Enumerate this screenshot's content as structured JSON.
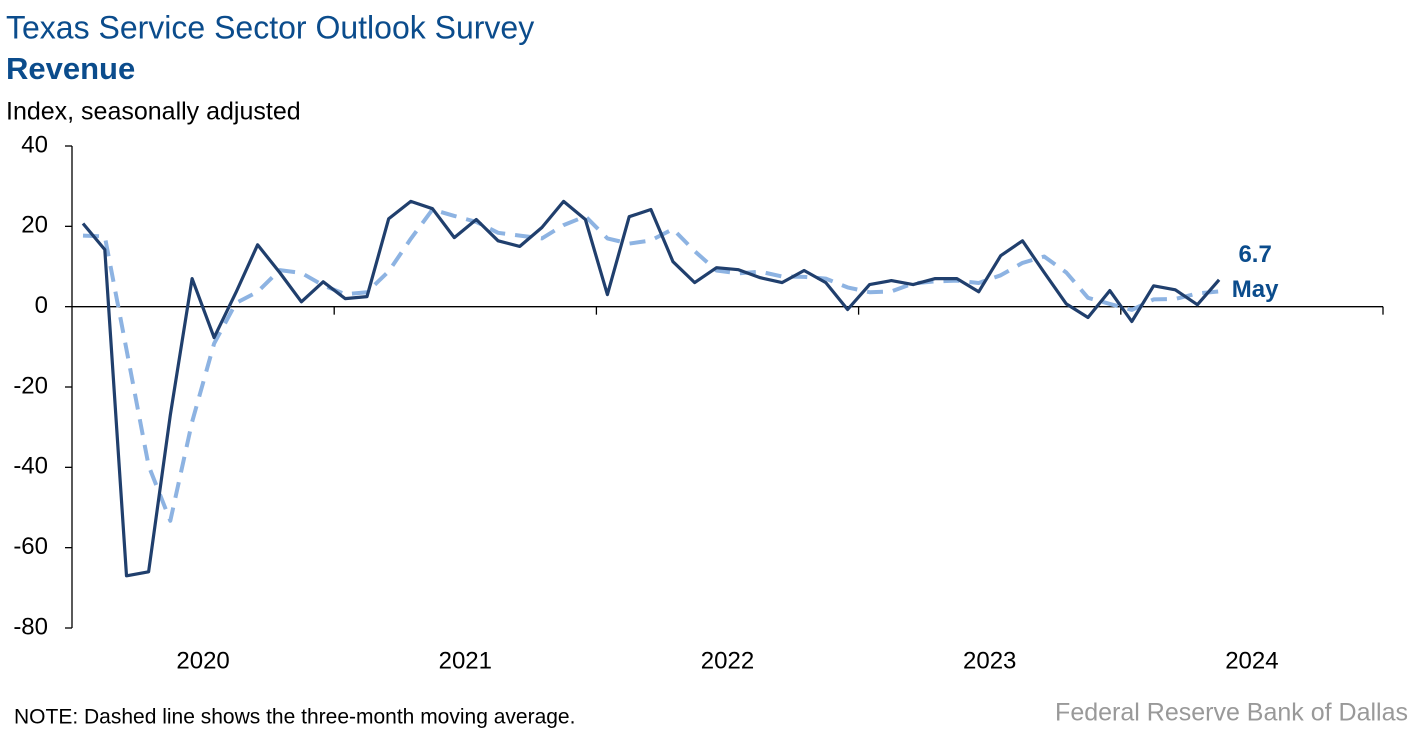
{
  "chart_data": {
    "type": "line",
    "title": "Texas Service Sector Outlook Survey",
    "subtitle": "Revenue",
    "y_axis_label": "Index, seasonally adjusted",
    "note": "NOTE: Dashed line shows the three-month moving average.",
    "source": "Federal Reserve Bank of Dallas",
    "annotations": [
      "6.7",
      "May"
    ],
    "x": [
      2020.042,
      2020.125,
      2020.208,
      2020.292,
      2020.375,
      2020.458,
      2020.542,
      2020.625,
      2020.708,
      2020.792,
      2020.875,
      2020.958,
      2021.042,
      2021.125,
      2021.208,
      2021.292,
      2021.375,
      2021.458,
      2021.542,
      2021.625,
      2021.708,
      2021.792,
      2021.875,
      2021.958,
      2022.042,
      2022.125,
      2022.208,
      2022.292,
      2022.375,
      2022.458,
      2022.542,
      2022.625,
      2022.708,
      2022.792,
      2022.875,
      2022.958,
      2023.042,
      2023.125,
      2023.208,
      2023.292,
      2023.375,
      2023.458,
      2023.542,
      2023.625,
      2023.708,
      2023.792,
      2023.875,
      2023.958,
      2024.042,
      2024.125,
      2024.208,
      2024.292,
      2024.375
    ],
    "series": [
      {
        "color": "#203f6d",
        "dashed": false,
        "values": [
          20.7,
          14.2,
          -67,
          -66,
          -27,
          7,
          -7.7,
          3.5,
          15.4,
          8.5,
          1.2,
          6.2,
          2,
          2.5,
          21.9,
          26.2,
          24.4,
          17.2,
          21.7,
          16.4,
          15,
          19.7,
          26.2,
          21.7,
          3,
          22.4,
          24.2,
          11.2,
          6,
          9.7,
          9.2,
          7.2,
          6,
          9,
          6,
          -0.7,
          5.5,
          6.5,
          5.5,
          7,
          7,
          3.7,
          12.7,
          16.4,
          8.5,
          0.7,
          -2.7,
          4,
          -3.7,
          5.2,
          4.2,
          0.5,
          6.7
        ]
      },
      {
        "color": "#8db3e2",
        "dashed": true,
        "values": [
          17.7,
          17.5,
          -10.7,
          -39.6,
          -53.3,
          -28.7,
          -9.2,
          0.9,
          3.7,
          9.1,
          8.4,
          5.3,
          3.1,
          3.6,
          8.8,
          16.9,
          24.2,
          22.6,
          21.1,
          18.4,
          17.7,
          17,
          20.3,
          22.5,
          17,
          15.7,
          16.5,
          19.3,
          13.8,
          9,
          8.3,
          8.7,
          7.5,
          7.4,
          7,
          4.8,
          3.6,
          3.8,
          5.8,
          6.3,
          6.5,
          5.9,
          7.8,
          10.9,
          12.5,
          8.5,
          2.2,
          0.7,
          -0.8,
          1.8,
          1.9,
          3.3,
          3.8
        ]
      }
    ],
    "xlim": [
      2020,
      2025
    ],
    "xticks": [
      {
        "value": 2020.5,
        "label": "2020"
      },
      {
        "value": 2021.5,
        "label": "2021"
      },
      {
        "value": 2022.5,
        "label": "2022"
      },
      {
        "value": 2023.5,
        "label": "2023"
      },
      {
        "value": 2024.5,
        "label": "2024"
      }
    ],
    "ylim": [
      -80,
      40
    ],
    "yticks": [
      -80,
      -60,
      -40,
      -20,
      0,
      20,
      40
    ],
    "title_color": "#0b4c8c",
    "source_color": "#999999"
  }
}
